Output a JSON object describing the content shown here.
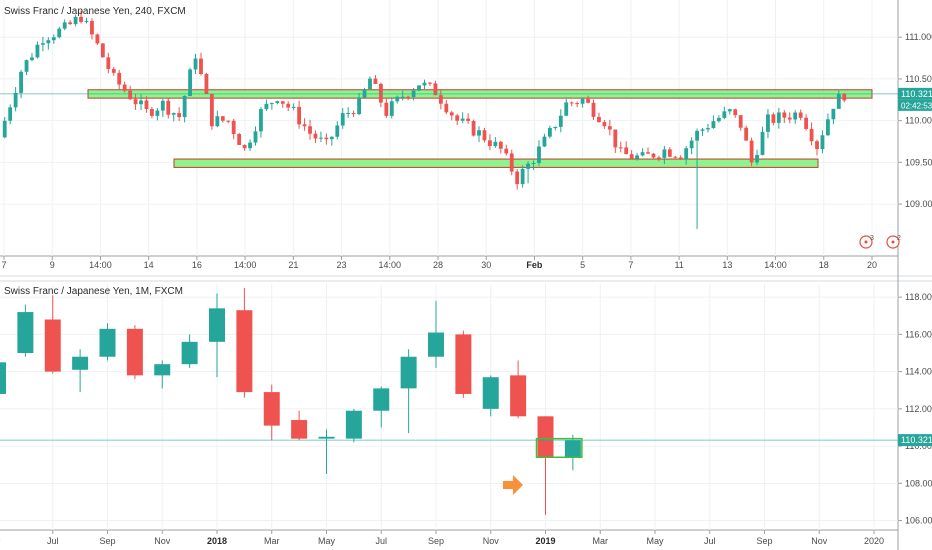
{
  "colors": {
    "up": "#26a69a",
    "down": "#ef5350",
    "grid": "#eef1f4",
    "axis": "#9aa0a6",
    "zone_fill": "#7df27a",
    "zone_stroke": "#c0392b",
    "price_line": "#26a69a",
    "badge": "#26a69a",
    "arrow": "#f7923a",
    "event": "#e74c3c"
  },
  "chart_data": [
    {
      "type": "candlestick",
      "title": "Swiss Franc / Japanese Yen, 240, FXCM",
      "ylim": [
        108.45,
        111.35
      ],
      "y_ticks": [
        "111.000",
        "110.500",
        "110.000",
        "109.500",
        "109.000"
      ],
      "x_ticks": [
        "7",
        "9",
        "14:00",
        "14",
        "16",
        "14:00",
        "21",
        "23",
        "14:00",
        "28",
        "30",
        "Feb",
        "5",
        "7",
        "11",
        "13",
        "14:00",
        "18",
        "20"
      ],
      "x_ticks_bold": [
        "Feb"
      ],
      "current_price": "110.321",
      "countdown": "02:42:53",
      "zones": [
        {
          "from": 110.27,
          "to": 110.37
        },
        {
          "from": 109.44,
          "to": 109.54
        }
      ],
      "events": [
        "3",
        "2"
      ],
      "candle_count": 155,
      "anchors": [
        [
          0,
          109.8
        ],
        [
          4,
          110.6
        ],
        [
          8,
          111.0
        ],
        [
          12,
          111.1
        ],
        [
          15,
          111.25
        ],
        [
          18,
          110.9
        ],
        [
          21,
          110.5
        ],
        [
          24,
          110.3
        ],
        [
          27,
          110.1
        ],
        [
          30,
          110.2
        ],
        [
          33,
          110.05
        ],
        [
          36,
          110.8
        ],
        [
          39,
          110.0
        ],
        [
          42,
          110.0
        ],
        [
          45,
          109.65
        ],
        [
          48,
          110.1
        ],
        [
          51,
          110.3
        ],
        [
          54,
          110.1
        ],
        [
          57,
          109.85
        ],
        [
          60,
          109.7
        ],
        [
          63,
          110.05
        ],
        [
          66,
          110.2
        ],
        [
          68,
          110.5
        ],
        [
          71,
          110.1
        ],
        [
          74,
          110.3
        ],
        [
          77,
          110.45
        ],
        [
          80,
          110.35
        ],
        [
          84,
          110.0
        ],
        [
          88,
          109.85
        ],
        [
          92,
          109.65
        ],
        [
          95,
          109.3
        ],
        [
          98,
          109.55
        ],
        [
          101,
          109.85
        ],
        [
          104,
          110.2
        ],
        [
          107,
          110.25
        ],
        [
          111,
          110.0
        ],
        [
          114,
          109.6
        ],
        [
          118,
          109.55
        ],
        [
          122,
          109.65
        ],
        [
          125,
          109.6
        ],
        [
          128,
          109.85
        ],
        [
          131,
          110.0
        ],
        [
          134,
          110.1
        ],
        [
          136,
          109.95
        ],
        [
          138,
          109.5
        ],
        [
          141,
          110.0
        ],
        [
          144,
          110.05
        ],
        [
          147,
          110.1
        ],
        [
          150,
          109.7
        ],
        [
          153,
          110.2
        ],
        [
          155,
          110.32
        ]
      ]
    },
    {
      "type": "candlestick",
      "title": "Swiss Franc / Japanese Yen, 1M, FXCM",
      "ylim": [
        105.6,
        118.6
      ],
      "y_ticks": [
        "118.000",
        "116.000",
        "114.000",
        "112.000",
        "110.000",
        "108.000",
        "106.000"
      ],
      "x_ticks": [
        "y",
        "Jul",
        "Sep",
        "Nov",
        "2018",
        "Mar",
        "May",
        "Jul",
        "Sep",
        "Nov",
        "2019",
        "Mar",
        "May",
        "Jul",
        "Sep",
        "Nov",
        "2020"
      ],
      "x_ticks_bold": [
        "2018",
        "2019"
      ],
      "current_price": "110.321",
      "candles": [
        {
          "o": 112.8,
          "h": 114.6,
          "l": 112.6,
          "c": 114.5
        },
        {
          "o": 115.0,
          "h": 117.6,
          "l": 114.8,
          "c": 117.2
        },
        {
          "o": 116.8,
          "h": 118.1,
          "l": 113.9,
          "c": 114.0
        },
        {
          "o": 114.1,
          "h": 115.2,
          "l": 112.9,
          "c": 114.8
        },
        {
          "o": 114.8,
          "h": 116.6,
          "l": 114.6,
          "c": 116.3
        },
        {
          "o": 116.3,
          "h": 116.5,
          "l": 113.6,
          "c": 113.8
        },
        {
          "o": 113.8,
          "h": 114.6,
          "l": 113.1,
          "c": 114.4
        },
        {
          "o": 114.4,
          "h": 116.0,
          "l": 114.2,
          "c": 115.6
        },
        {
          "o": 115.6,
          "h": 118.2,
          "l": 113.7,
          "c": 117.4
        },
        {
          "o": 117.3,
          "h": 118.5,
          "l": 112.6,
          "c": 112.9
        },
        {
          "o": 112.9,
          "h": 113.3,
          "l": 110.3,
          "c": 111.1
        },
        {
          "o": 111.4,
          "h": 111.9,
          "l": 110.3,
          "c": 110.4
        },
        {
          "o": 110.4,
          "h": 110.9,
          "l": 108.5,
          "c": 110.5
        },
        {
          "o": 110.4,
          "h": 112.0,
          "l": 110.2,
          "c": 111.9
        },
        {
          "o": 111.9,
          "h": 113.2,
          "l": 111.0,
          "c": 113.1
        },
        {
          "o": 113.1,
          "h": 115.2,
          "l": 110.7,
          "c": 114.8
        },
        {
          "o": 114.8,
          "h": 117.8,
          "l": 114.2,
          "c": 116.1
        },
        {
          "o": 116.0,
          "h": 116.2,
          "l": 112.6,
          "c": 112.8
        },
        {
          "o": 112.0,
          "h": 113.8,
          "l": 111.6,
          "c": 113.7
        },
        {
          "o": 113.8,
          "h": 114.6,
          "l": 111.5,
          "c": 111.6
        },
        {
          "o": 111.6,
          "h": 111.6,
          "l": 106.3,
          "c": 109.4
        },
        {
          "o": 109.4,
          "h": 110.6,
          "l": 108.7,
          "c": 110.3
        }
      ],
      "box": {
        "from": 109.4,
        "to": 110.4
      },
      "arrow": "right"
    }
  ]
}
